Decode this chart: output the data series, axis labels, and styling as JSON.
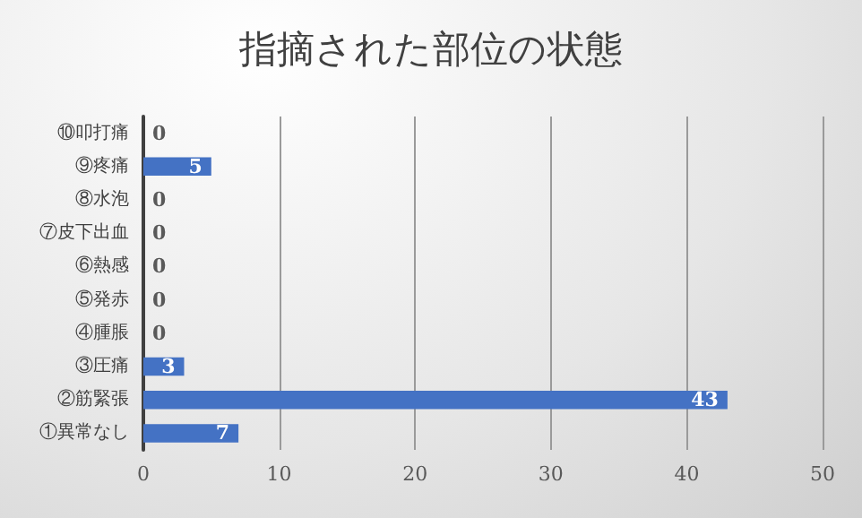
{
  "chart_data": {
    "type": "bar",
    "orientation": "horizontal",
    "title": "指摘された部位の状態",
    "categories": [
      "⑩叩打痛",
      "⑨疼痛",
      "⑧水泡",
      "⑦皮下出血",
      "⑥熱感",
      "⑤発赤",
      "④腫脹",
      "③圧痛",
      "②筋緊張",
      "①異常なし"
    ],
    "values": [
      0,
      5,
      0,
      0,
      0,
      0,
      0,
      3,
      43,
      7
    ],
    "color": "#4472c4",
    "xlim": [
      0,
      50
    ],
    "xticks": [
      0,
      10,
      20,
      30,
      40,
      50
    ],
    "grid": "x",
    "data_labels": true
  }
}
